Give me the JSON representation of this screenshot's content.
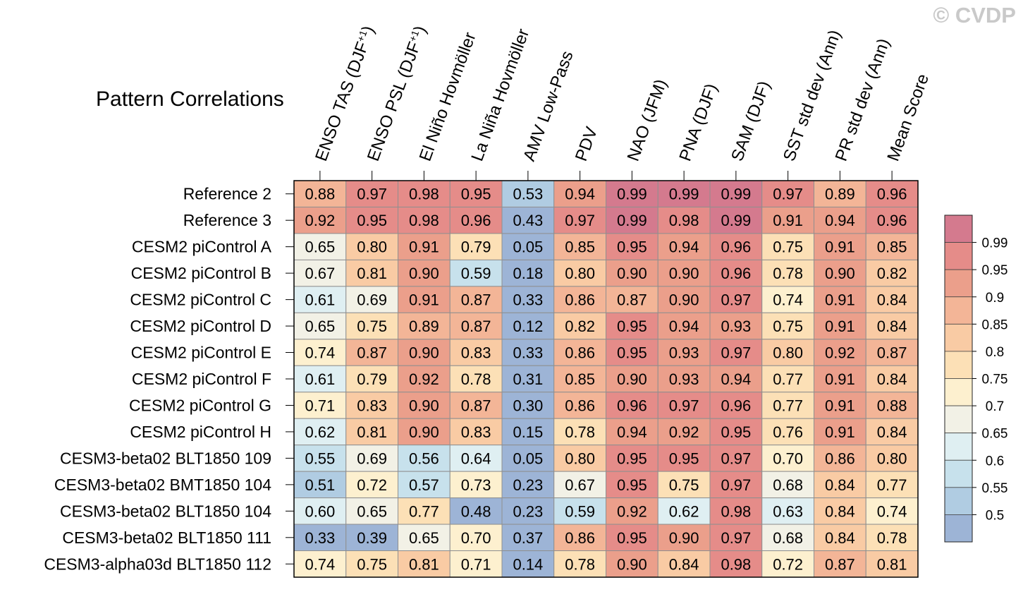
{
  "watermark": "© CVDP",
  "chart_data": {
    "type": "heatmap",
    "title": "Pattern Correlations",
    "columns": [
      {
        "base": "ENSO TAS (DJF",
        "sup": "+1",
        "tail": ")"
      },
      {
        "base": "ENSO PSL (DJF",
        "sup": "+1",
        "tail": ")"
      },
      {
        "base": "El Niño Hovmöller",
        "sup": "",
        "tail": ""
      },
      {
        "base": "La Niña Hovmöller",
        "sup": "",
        "tail": ""
      },
      {
        "base": "AMV Low-Pass",
        "sup": "",
        "tail": ""
      },
      {
        "base": "PDV",
        "sup": "",
        "tail": ""
      },
      {
        "base": "NAO (JFM)",
        "sup": "",
        "tail": ""
      },
      {
        "base": "PNA (DJF)",
        "sup": "",
        "tail": ""
      },
      {
        "base": "SAM (DJF)",
        "sup": "",
        "tail": ""
      },
      {
        "base": "SST std dev (Ann)",
        "sup": "",
        "tail": ""
      },
      {
        "base": "PR std dev (Ann)",
        "sup": "",
        "tail": ""
      },
      {
        "base": "Mean Score",
        "sup": "",
        "tail": ""
      }
    ],
    "rows": [
      "Reference 2",
      "Reference 3",
      "CESM2 piControl A",
      "CESM2 piControl B",
      "CESM2 piControl C",
      "CESM2 piControl D",
      "CESM2 piControl E",
      "CESM2 piControl F",
      "CESM2 piControl G",
      "CESM2 piControl H",
      "CESM3-beta02 BLT1850 109",
      "CESM3-beta02 BMT1850 104",
      "CESM3-beta02 BLT1850 104",
      "CESM3-beta02 BLT1850 111",
      "CESM3-alpha03d BLT1850 112"
    ],
    "values": [
      [
        "0.88",
        "0.97",
        "0.98",
        "0.95",
        "0.53",
        "0.94",
        "0.99",
        "0.99",
        "0.99",
        "0.97",
        "0.89",
        "0.96"
      ],
      [
        "0.92",
        "0.95",
        "0.98",
        "0.96",
        "0.43",
        "0.97",
        "0.99",
        "0.98",
        "0.99",
        "0.91",
        "0.94",
        "0.96"
      ],
      [
        "0.65",
        "0.80",
        "0.91",
        "0.79",
        "0.05",
        "0.85",
        "0.95",
        "0.94",
        "0.96",
        "0.75",
        "0.91",
        "0.85"
      ],
      [
        "0.67",
        "0.81",
        "0.90",
        "0.59",
        "0.18",
        "0.80",
        "0.90",
        "0.90",
        "0.96",
        "0.78",
        "0.90",
        "0.82"
      ],
      [
        "0.61",
        "0.69",
        "0.91",
        "0.87",
        "0.33",
        "0.86",
        "0.87",
        "0.90",
        "0.97",
        "0.74",
        "0.91",
        "0.84"
      ],
      [
        "0.65",
        "0.75",
        "0.89",
        "0.87",
        "0.12",
        "0.82",
        "0.95",
        "0.94",
        "0.93",
        "0.75",
        "0.91",
        "0.84"
      ],
      [
        "0.74",
        "0.87",
        "0.90",
        "0.83",
        "0.33",
        "0.86",
        "0.95",
        "0.93",
        "0.97",
        "0.80",
        "0.92",
        "0.87"
      ],
      [
        "0.61",
        "0.79",
        "0.92",
        "0.78",
        "0.31",
        "0.85",
        "0.90",
        "0.93",
        "0.94",
        "0.77",
        "0.91",
        "0.84"
      ],
      [
        "0.71",
        "0.83",
        "0.90",
        "0.87",
        "0.30",
        "0.86",
        "0.96",
        "0.97",
        "0.96",
        "0.77",
        "0.91",
        "0.88"
      ],
      [
        "0.62",
        "0.81",
        "0.90",
        "0.83",
        "0.15",
        "0.78",
        "0.94",
        "0.92",
        "0.95",
        "0.76",
        "0.91",
        "0.84"
      ],
      [
        "0.55",
        "0.69",
        "0.56",
        "0.64",
        "0.05",
        "0.80",
        "0.95",
        "0.95",
        "0.97",
        "0.70",
        "0.86",
        "0.80"
      ],
      [
        "0.51",
        "0.72",
        "0.57",
        "0.73",
        "0.23",
        "0.67",
        "0.95",
        "0.75",
        "0.97",
        "0.68",
        "0.84",
        "0.77"
      ],
      [
        "0.60",
        "0.65",
        "0.77",
        "0.48",
        "0.23",
        "0.59",
        "0.92",
        "0.62",
        "0.98",
        "0.63",
        "0.84",
        "0.74"
      ],
      [
        "0.33",
        "0.39",
        "0.65",
        "0.70",
        "0.37",
        "0.86",
        "0.95",
        "0.90",
        "0.97",
        "0.68",
        "0.84",
        "0.78"
      ],
      [
        "0.74",
        "0.75",
        "0.81",
        "0.71",
        "0.14",
        "0.78",
        "0.90",
        "0.84",
        "0.98",
        "0.72",
        "0.87",
        "0.81"
      ]
    ],
    "colorbar": {
      "labels": [
        "0.99",
        "0.95",
        "0.9",
        "0.85",
        "0.8",
        "0.75",
        "0.7",
        "0.65",
        "0.6",
        "0.55",
        "0.5"
      ],
      "thresholds": [
        0.99,
        0.95,
        0.9,
        0.85,
        0.8,
        0.75,
        0.7,
        0.65,
        0.6,
        0.55,
        0.5
      ],
      "colors": [
        "#d47a8e",
        "#e58c89",
        "#eb9f8b",
        "#f3b597",
        "#f9cba4",
        "#fce0b6",
        "#fdf0cf",
        "#f2f1e6",
        "#dfeff2",
        "#c7e1ec",
        "#b0cce2",
        "#9db4d6"
      ]
    }
  }
}
